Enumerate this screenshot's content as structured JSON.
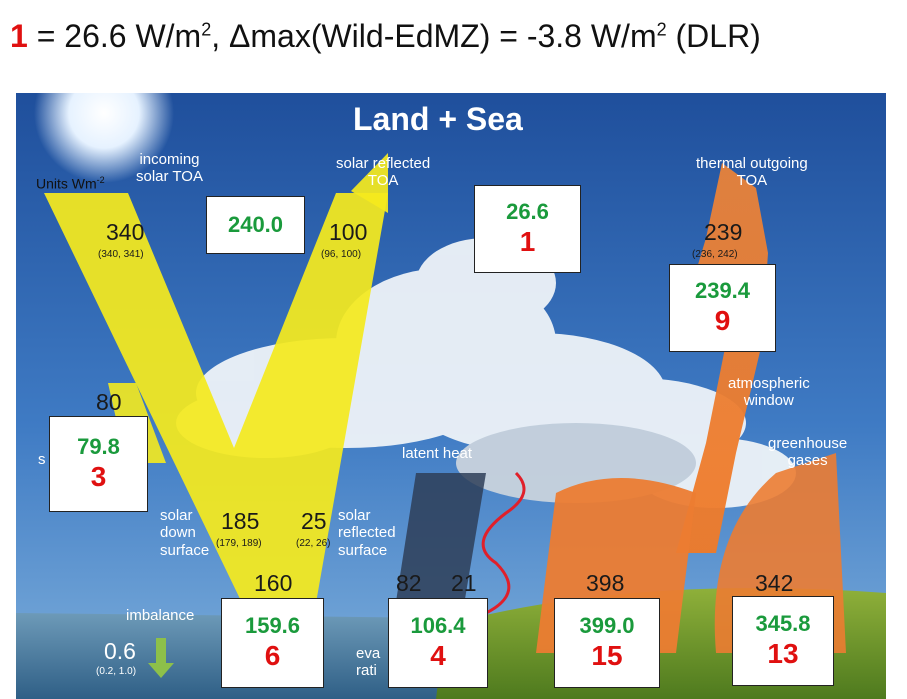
{
  "header": {
    "number": "1",
    "text_a": " = 26.6 W/m",
    "sup_a": "2",
    "text_b": ", Δmax(Wild-EdMZ) = -3.8 W/m",
    "sup_b": "2",
    "text_c": " (DLR)"
  },
  "diagram": {
    "title": "Land + Sea",
    "units": "Units Wm",
    "units_sup": "-2",
    "labels": {
      "incoming": "incoming\nsolar TOA",
      "solar_reflected_toa": "solar reflected\nTOA",
      "thermal_outgoing": "thermal outgoing\nTOA",
      "atmospheric_window": "atmospheric\nwindow",
      "greenhouse_gases": "greenhouse\ngases",
      "latent_heat": "latent heat",
      "solar_down": "solar\ndown\nsurface",
      "solar_reflected_surface": "solar\nreflected\nsurface",
      "imbalance": "imbalance",
      "s_fragment": "s",
      "evap_fragment": "eva\nrati"
    },
    "values": {
      "v340": "340",
      "v340_range": "(340, 341)",
      "v100": "100",
      "v100_range": "(96, 100)",
      "v239": "239",
      "v239_range": "(236, 242)",
      "v80": "80",
      "v185": "185",
      "v185_range": "(179, 189)",
      "v25": "25",
      "v25_range": "(22, 26)",
      "v160": "160",
      "v82": "82",
      "v21": "21",
      "v398": "398",
      "v342": "342",
      "v06": "0.6",
      "v06_range": "(0.2, 1.0)"
    },
    "boxes": [
      {
        "value": "240.0",
        "index": ""
      },
      {
        "value": "26.6",
        "index": "1"
      },
      {
        "value": "239.4",
        "index": "9"
      },
      {
        "value": "79.8",
        "index": "3"
      },
      {
        "value": "159.6",
        "index": "6"
      },
      {
        "value": "106.4",
        "index": "4"
      },
      {
        "value": "399.0",
        "index": "15"
      },
      {
        "value": "345.8",
        "index": "13"
      }
    ]
  }
}
